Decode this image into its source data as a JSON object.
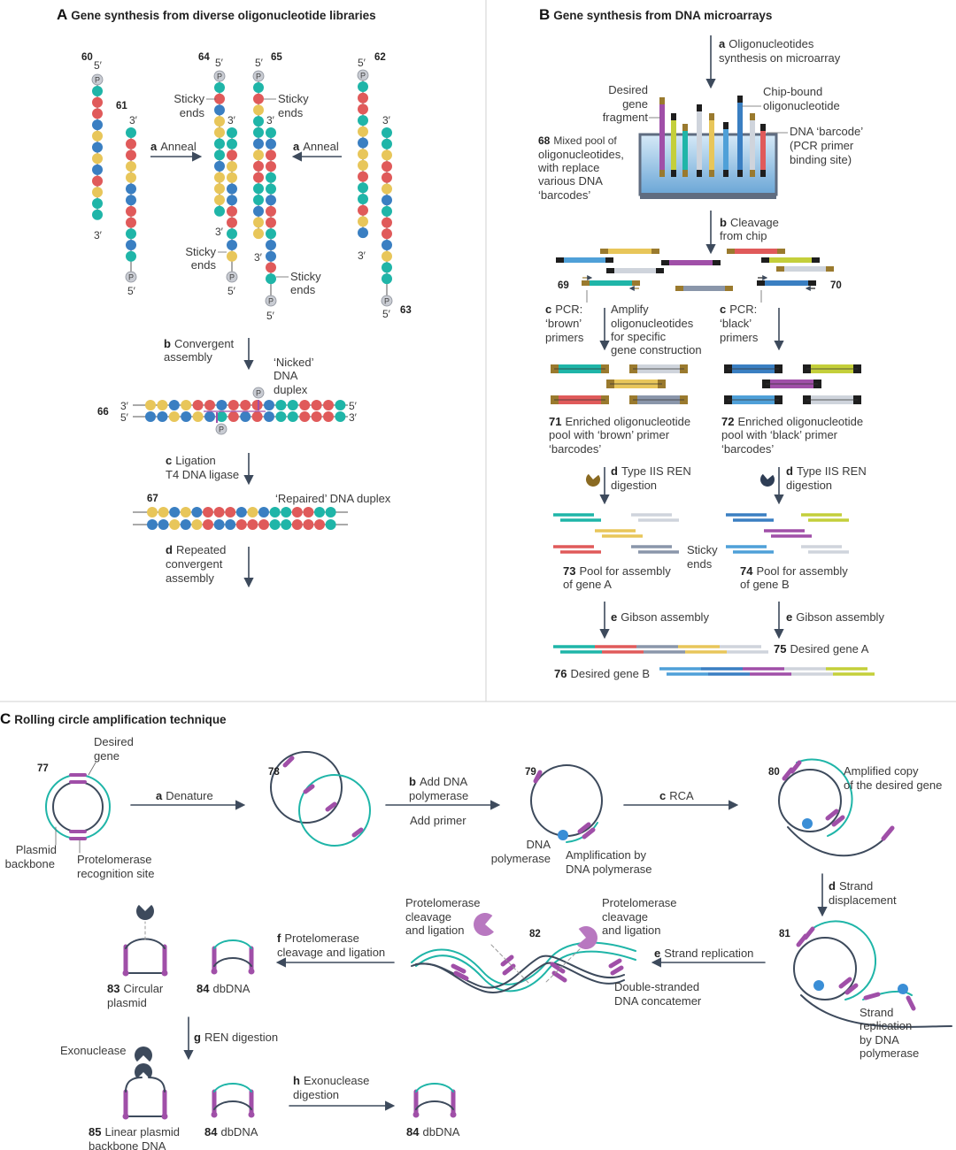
{
  "colors": {
    "teal": "#1fb5a8",
    "red": "#e05a5a",
    "yellow": "#e8c65a",
    "blue": "#3a7fc2",
    "purple": "#a04fa8",
    "dark": "#3d4a5c",
    "brown": "#9a7a2e",
    "black": "#1e1e1e",
    "gray": "#cfd4dc",
    "slate": "#8a96aa",
    "lime": "#c4cf3a",
    "lightblue": "#4fa0d8",
    "phosphate": "#c9ccd3"
  },
  "panel_a": {
    "letter": "A",
    "title": "Gene synthesis from diverse oligonucleotide libraries",
    "ids": {
      "s60": "60",
      "s61": "61",
      "s62": "62",
      "s63": "63",
      "s64": "64",
      "s65": "65",
      "s66": "66",
      "s67": "67"
    },
    "five": "5′",
    "three": "3′",
    "phosphate": "P",
    "sticky": [
      "Sticky",
      "ends"
    ],
    "anneal_key": "a",
    "anneal": "Anneal",
    "convergent_key": "b",
    "convergent": [
      "Convergent",
      "assembly"
    ],
    "nicked": [
      "‘Nicked’",
      "DNA",
      "duplex"
    ],
    "ligation_key": "c",
    "ligation": [
      "Ligation",
      "T4 DNA ligase"
    ],
    "repaired": "‘Repaired’ DNA duplex",
    "repeated_key": "d",
    "repeated": [
      "Repeated",
      "convergent",
      "assembly"
    ]
  },
  "panel_b": {
    "letter": "B",
    "title": "Gene synthesis from DNA microarrays",
    "synth_key": "a",
    "synth": [
      "Oligonucleotides",
      "synthesis on microarray"
    ],
    "desired": [
      "Desired",
      "gene",
      "fragment"
    ],
    "chip_bound": [
      "Chip-bound",
      "oligonucleotide"
    ],
    "mixed_id": "68",
    "mixed": [
      "Mixed pool of",
      "oligonucleotides,",
      "with replace",
      "various DNA",
      "‘barcodes’"
    ],
    "barcode": [
      "DNA ‘barcode’",
      "(PCR primer",
      "binding site)"
    ],
    "cleavage_key": "b",
    "cleavage": [
      "Cleavage",
      "from chip"
    ],
    "id69": "69",
    "id70": "70",
    "pcr_key": "c",
    "pcr_brown": [
      "PCR:",
      "‘brown’",
      "primers"
    ],
    "amplify": [
      "Amplify",
      "oligonucleotides",
      "for specific",
      "gene construction"
    ],
    "pcr_black": [
      "PCR:",
      "‘black’",
      "primers"
    ],
    "id71": "71",
    "pool71": [
      "Enriched oligonucleotide",
      "pool with ‘brown’ primer",
      "‘barcodes’"
    ],
    "id72": "72",
    "pool72": [
      "Enriched oligonucleotide",
      "pool with ‘black’ primer",
      "‘barcodes’"
    ],
    "ren_key": "d",
    "ren": [
      "Type IIS REN",
      "digestion"
    ],
    "sticky": [
      "Sticky",
      "ends"
    ],
    "id73": "73",
    "pool73": [
      "Pool for assembly",
      "of gene A"
    ],
    "id74": "74",
    "pool74": [
      "Pool for assembly",
      "of gene B"
    ],
    "gibson_key": "e",
    "gibson": "Gibson assembly",
    "id75": "75",
    "gene75": "Desired gene A",
    "id76": "76",
    "gene76": "Desired gene B"
  },
  "panel_c": {
    "letter": "C",
    "title": "Rolling circle amplification technique",
    "ids": {
      "s77": "77",
      "s78": "78",
      "s79": "79",
      "s80": "80",
      "s81": "81",
      "s82": "82",
      "s83": "83",
      "s84": "84",
      "s85": "85"
    },
    "desired": [
      "Desired",
      "gene"
    ],
    "backbone": [
      "Plasmid",
      "backbone"
    ],
    "recog": [
      "Protelomerase",
      "recognition site"
    ],
    "denature_key": "a",
    "denature": "Denature",
    "add_key": "b",
    "add": [
      "Add DNA",
      "polymerase"
    ],
    "primer": "Add primer",
    "polymerase": [
      "DNA",
      "polymerase"
    ],
    "amp_by": [
      "Amplification by",
      "DNA polymerase"
    ],
    "rca_key": "c",
    "rca": "RCA",
    "amplified": [
      "Amplified copy",
      "of the desired gene"
    ],
    "disp_key": "d",
    "disp": [
      "Strand",
      "displacement"
    ],
    "strand_rep": [
      "Strand",
      "replication",
      "by DNA",
      "polymerase"
    ],
    "e_key": "e",
    "e_text": "Strand replication",
    "concatemer": [
      "Double-stranded",
      "DNA concatemer"
    ],
    "prot": [
      "Protelomerase",
      "cleavage",
      "and ligation"
    ],
    "f_key": "f",
    "f": [
      "Protelomerase",
      "cleavage and ligation"
    ],
    "circular": [
      "Circular",
      "plasmid"
    ],
    "dbdna": "dbDNA",
    "g_key": "g",
    "g": "REN digestion",
    "exo": "Exonuclease",
    "linear": [
      "Linear plasmid",
      "backbone DNA"
    ],
    "h_key": "h",
    "h": [
      "Exonuclease",
      "digestion"
    ]
  }
}
